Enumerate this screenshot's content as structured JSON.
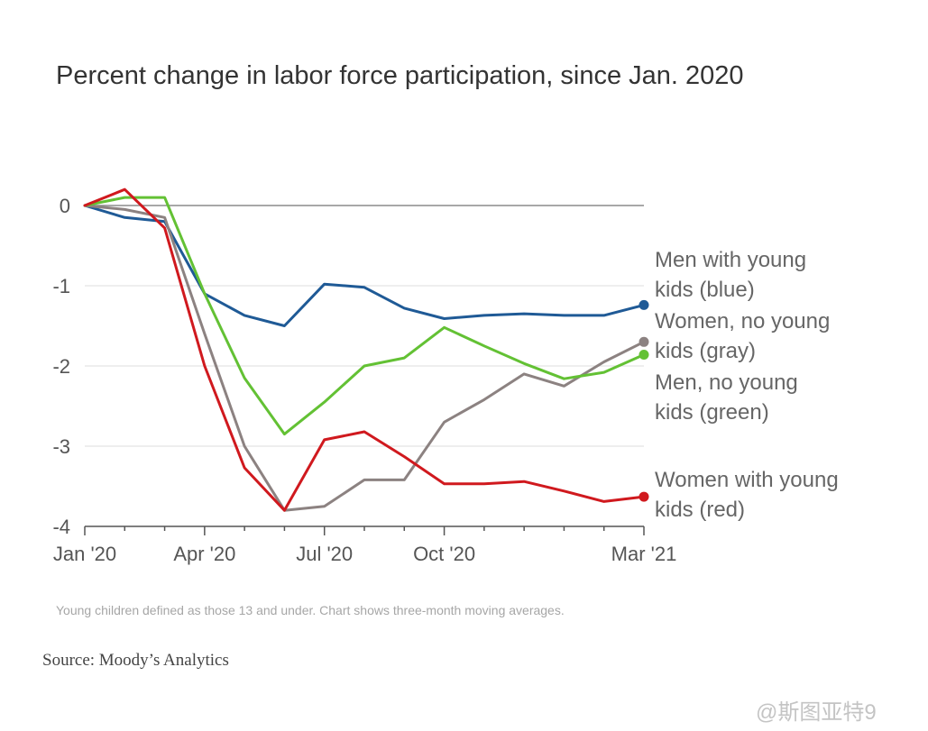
{
  "chart_data": {
    "type": "line",
    "title": "Percent change in labor force participation, since Jan. 2020",
    "xlabel": "",
    "ylabel": "",
    "ylim": [
      -4,
      0
    ],
    "yticks": [
      0,
      -1,
      -2,
      -3,
      -4
    ],
    "ytick_labels": [
      "0",
      "-1",
      "-2",
      "-3",
      "-4"
    ],
    "xticks": [
      {
        "x": 0,
        "label": "Jan '20"
      },
      {
        "x": 3,
        "label": "Apr '20"
      },
      {
        "x": 6,
        "label": "Jul '20"
      },
      {
        "x": 9,
        "label": "Oct '20"
      },
      {
        "x": 14,
        "label": "Mar '21"
      }
    ],
    "x": [
      0,
      1,
      2,
      3,
      4,
      5,
      6,
      7,
      8,
      9,
      10,
      11,
      12,
      13,
      14
    ],
    "grid": "horizontal",
    "legend": "direct labels at line ends, right",
    "series": [
      {
        "name": "Men with young kids (blue)",
        "label_lines": [
          "Men with young",
          "kids (blue)"
        ],
        "color": "#1f5a96",
        "values": [
          0,
          -0.15,
          -0.2,
          -1.1,
          -1.37,
          -1.5,
          -0.98,
          -1.02,
          -1.28,
          -1.41,
          -1.37,
          -1.35,
          -1.37,
          -1.37,
          -1.24
        ]
      },
      {
        "name": "Women, no young kids (gray)",
        "label_lines": [
          "Women, no young",
          "kids (gray)"
        ],
        "color": "#8c8281",
        "values": [
          0,
          -0.05,
          -0.15,
          -1.6,
          -3.0,
          -3.8,
          -3.75,
          -3.42,
          -3.42,
          -2.7,
          -2.42,
          -2.1,
          -2.25,
          -1.95,
          -1.7
        ]
      },
      {
        "name": "Men, no young kids (green)",
        "label_lines": [
          "Men, no young",
          "kids (green)"
        ],
        "color": "#63c134",
        "values": [
          0,
          0.1,
          0.1,
          -1.1,
          -2.15,
          -2.85,
          -2.45,
          -2.0,
          -1.9,
          -1.52,
          -1.75,
          -1.97,
          -2.16,
          -2.08,
          -1.86
        ]
      },
      {
        "name": "Women with young kids (red)",
        "label_lines": [
          "Women with young",
          "kids (red)"
        ],
        "color": "#d0191e",
        "values": [
          0,
          0.2,
          -0.28,
          -2.0,
          -3.27,
          -3.8,
          -2.92,
          -2.82,
          -3.13,
          -3.47,
          -3.47,
          -3.44,
          -3.56,
          -3.69,
          -3.63
        ]
      }
    ]
  },
  "note": "Young children defined as those 13 and under. Chart shows three-month moving averages.",
  "source": "Source: Moody’s Analytics",
  "watermark": "@斯图亚特9",
  "colors": {
    "grid": "#e3e3e3",
    "zero_line": "#8c8c8c",
    "axis_text": "#555555",
    "label_text": "#666666"
  }
}
